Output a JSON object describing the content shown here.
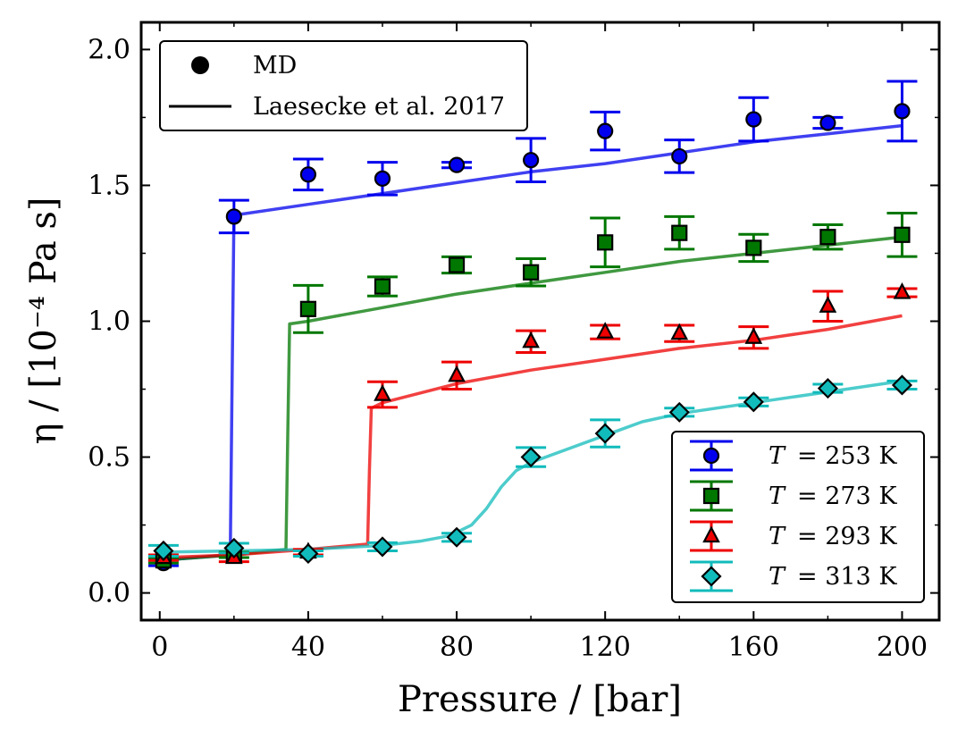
{
  "chart_data": {
    "type": "scatter",
    "xlabel": "Pressure / [bar]",
    "ylabel": "η / [10⁻⁴ Pa s]",
    "xlim": [
      -5,
      210
    ],
    "ylim": [
      -0.1,
      2.1
    ],
    "xticks": [
      0,
      40,
      80,
      120,
      160,
      200
    ],
    "xtick_labels": [
      "0",
      "40",
      "80",
      "120",
      "160",
      "200"
    ],
    "yticks": [
      0.0,
      0.5,
      1.0,
      1.5,
      2.0
    ],
    "ytick_labels": [
      "0.0",
      "0.5",
      "1.0",
      "1.5",
      "2.0"
    ],
    "grid": false,
    "legends": [
      {
        "placement": "top-left",
        "entries": [
          {
            "label": "MD",
            "kind": "marker"
          },
          {
            "label": "Laesecke et al. 2017",
            "kind": "line"
          }
        ]
      },
      {
        "placement": "bottom-right",
        "entries": [
          {
            "T_symbol": "T",
            "text": "= 253 K",
            "series_index": 0
          },
          {
            "T_symbol": "T",
            "text": "= 273 K",
            "series_index": 1
          },
          {
            "T_symbol": "T",
            "text": "= 293 K",
            "series_index": 2
          },
          {
            "T_symbol": "T",
            "text": "= 313 K",
            "series_index": 3
          }
        ]
      }
    ],
    "series": [
      {
        "name": "T = 253 K",
        "color": "#0000ee",
        "marker": "circle",
        "md": {
          "x": [
            1,
            20,
            40,
            60,
            80,
            100,
            120,
            140,
            160,
            180,
            200
          ],
          "y": [
            0.11,
            1.385,
            1.54,
            1.525,
            1.575,
            1.593,
            1.7,
            1.607,
            1.743,
            1.73,
            1.773
          ],
          "err": [
            0.01,
            0.06,
            0.057,
            0.06,
            0.01,
            0.08,
            0.07,
            0.06,
            0.08,
            0.02,
            0.11
          ]
        },
        "ref": {
          "x": [
            0,
            19,
            19.5,
            20,
            40,
            60,
            80,
            100,
            120,
            140,
            160,
            180,
            200
          ],
          "y": [
            0.12,
            0.14,
            0.8,
            1.39,
            1.43,
            1.47,
            1.51,
            1.55,
            1.58,
            1.62,
            1.66,
            1.69,
            1.72
          ]
        }
      },
      {
        "name": "T = 273 K",
        "color": "#007700",
        "marker": "square",
        "md": {
          "x": [
            1,
            20,
            40,
            60,
            80,
            100,
            120,
            140,
            160,
            180,
            200
          ],
          "y": [
            0.12,
            0.14,
            1.045,
            1.128,
            1.207,
            1.18,
            1.29,
            1.325,
            1.27,
            1.31,
            1.318
          ],
          "err": [
            0.01,
            0.01,
            0.087,
            0.035,
            0.03,
            0.05,
            0.09,
            0.06,
            0.05,
            0.045,
            0.08
          ]
        },
        "ref": {
          "x": [
            0,
            20,
            34,
            34.5,
            35,
            40,
            60,
            80,
            100,
            120,
            140,
            160,
            180,
            200
          ],
          "y": [
            0.12,
            0.14,
            0.16,
            0.6,
            0.99,
            1.0,
            1.05,
            1.1,
            1.14,
            1.18,
            1.22,
            1.25,
            1.28,
            1.31
          ]
        }
      },
      {
        "name": "T = 293 K",
        "color": "#ee0000",
        "marker": "triangle",
        "md": {
          "x": [
            1,
            20,
            40,
            60,
            80,
            100,
            120,
            140,
            160,
            180,
            200
          ],
          "y": [
            0.13,
            0.13,
            0.15,
            0.73,
            0.8,
            0.925,
            0.96,
            0.955,
            0.94,
            1.055,
            1.105
          ],
          "err": [
            0.01,
            0.015,
            0.01,
            0.047,
            0.05,
            0.04,
            0.025,
            0.03,
            0.04,
            0.055,
            0.015
          ]
        },
        "ref": {
          "x": [
            0,
            20,
            40,
            56,
            56.5,
            57,
            60,
            80,
            100,
            120,
            140,
            160,
            180,
            200
          ],
          "y": [
            0.13,
            0.14,
            0.16,
            0.18,
            0.45,
            0.68,
            0.7,
            0.77,
            0.82,
            0.86,
            0.9,
            0.93,
            0.97,
            1.02
          ]
        }
      },
      {
        "name": "T = 313 K",
        "color": "#11bbbb",
        "marker": "diamond",
        "md": {
          "x": [
            1,
            20,
            40,
            60,
            80,
            100,
            120,
            140,
            160,
            180,
            200
          ],
          "y": [
            0.155,
            0.165,
            0.145,
            0.17,
            0.205,
            0.5,
            0.587,
            0.665,
            0.703,
            0.753,
            0.765
          ],
          "err": [
            0.02,
            0.018,
            0.01,
            0.015,
            0.015,
            0.035,
            0.05,
            0.015,
            0.015,
            0.015,
            0.015
          ]
        },
        "ref": {
          "x": [
            0,
            20,
            40,
            60,
            70,
            78,
            84,
            88,
            92,
            96,
            100,
            110,
            120,
            130,
            140,
            160,
            180,
            200
          ],
          "y": [
            0.15,
            0.155,
            0.16,
            0.175,
            0.19,
            0.21,
            0.25,
            0.31,
            0.39,
            0.45,
            0.48,
            0.53,
            0.58,
            0.63,
            0.66,
            0.7,
            0.74,
            0.78
          ]
        }
      }
    ]
  }
}
